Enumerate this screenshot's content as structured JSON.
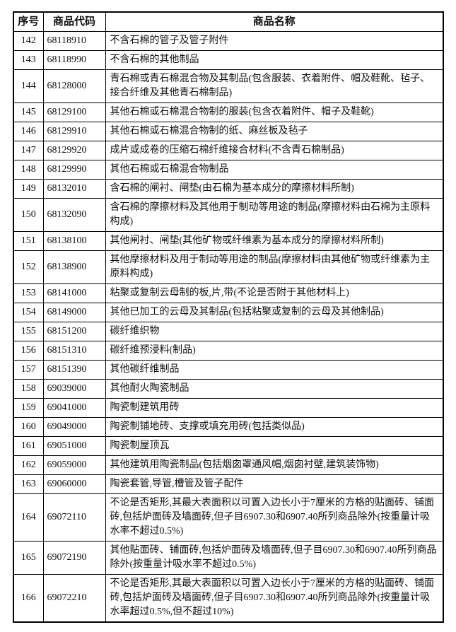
{
  "table": {
    "headers": {
      "no": "序号",
      "code": "商品代码",
      "name": "商品名称"
    },
    "rows": [
      {
        "no": "142",
        "code": "68118910",
        "name": "不含石棉的管子及管子附件"
      },
      {
        "no": "143",
        "code": "68118990",
        "name": "不含石棉的其他制品"
      },
      {
        "no": "144",
        "code": "68128000",
        "name": "青石棉或青石棉混合物及其制品(包含服装、衣着附件、帽及鞋靴、毡子、接合纤维及其他青石棉制品)"
      },
      {
        "no": "145",
        "code": "68129100",
        "name": "其他石棉或石棉混合物制的服装(包含衣着附件、帽子及鞋靴)"
      },
      {
        "no": "146",
        "code": "68129910",
        "name": "其他石棉或石棉混合物制的纸、麻丝板及毡子"
      },
      {
        "no": "147",
        "code": "68129920",
        "name": "成片或成卷的压缩石棉纤维接合材料(不含青石棉制品)"
      },
      {
        "no": "148",
        "code": "68129990",
        "name": "其他石棉或石棉混合物制品"
      },
      {
        "no": "149",
        "code": "68132010",
        "name": "含石棉的闸衬、闸垫(由石棉为基本成分的摩擦材料所制)"
      },
      {
        "no": "150",
        "code": "68132090",
        "name": "含石棉的摩擦材料及其他用于制动等用途的制品(摩擦材料由石棉为主原料构成)"
      },
      {
        "no": "151",
        "code": "68138100",
        "name": "其他闸衬、闸垫(其他矿物或纤维素为基本成分的摩擦材料所制)"
      },
      {
        "no": "152",
        "code": "68138900",
        "name": "其他摩擦材料及用于制动等用途的制品(摩擦材料由其他矿物或纤维素为主原料构成)"
      },
      {
        "no": "153",
        "code": "68141000",
        "name": "粘聚或复制云母制的板,片,带(不论是否附于其他材料上)"
      },
      {
        "no": "154",
        "code": "68149000",
        "name": "其他已加工的云母及其制品(包括粘聚或复制的云母及其他制品)"
      },
      {
        "no": "155",
        "code": "68151200",
        "name": "碳纤维织物"
      },
      {
        "no": "156",
        "code": "68151310",
        "name": "碳纤维预浸料(制品)"
      },
      {
        "no": "157",
        "code": "68151390",
        "name": "其他碳纤维制品"
      },
      {
        "no": "158",
        "code": "69039000",
        "name": "其他耐火陶瓷制品"
      },
      {
        "no": "159",
        "code": "69041000",
        "name": "陶瓷制建筑用砖"
      },
      {
        "no": "160",
        "code": "69049000",
        "name": "陶瓷制铺地砖、支撑或填充用砖(包括类似品)"
      },
      {
        "no": "161",
        "code": "69051000",
        "name": "陶瓷制屋顶瓦"
      },
      {
        "no": "162",
        "code": "69059000",
        "name": "其他建筑用陶瓷制品(包括烟囱罩通风帽,烟囱衬壁,建筑装饰物)"
      },
      {
        "no": "163",
        "code": "69060000",
        "name": "陶瓷套管,导管,槽管及管子配件"
      },
      {
        "no": "164",
        "code": "69072110",
        "name": "不论是否矩形,其最大表面积以可置入边长小于7厘米的方格的贴面砖、铺面砖,包括炉面砖及墙面砖,但子目6907.30和6907.40所列商品除外(按重量计吸水率不超过0.5%)"
      },
      {
        "no": "165",
        "code": "69072190",
        "name": "其他贴面砖、铺面砖,包括炉面砖及墙面砖,但子目6907.30和6907.40所列商品除外(按重量计吸水率不超过0.5%)"
      },
      {
        "no": "166",
        "code": "69072210",
        "name": "不论是否矩形,其最大表面积以可置入边长小于7厘米的方格的贴面砖、铺面砖,包括炉面砖及墙面砖,但子目6907.30和6907.40所列商品除外(按重量计吸水率超过0.5%,但不超过10%)"
      }
    ]
  }
}
